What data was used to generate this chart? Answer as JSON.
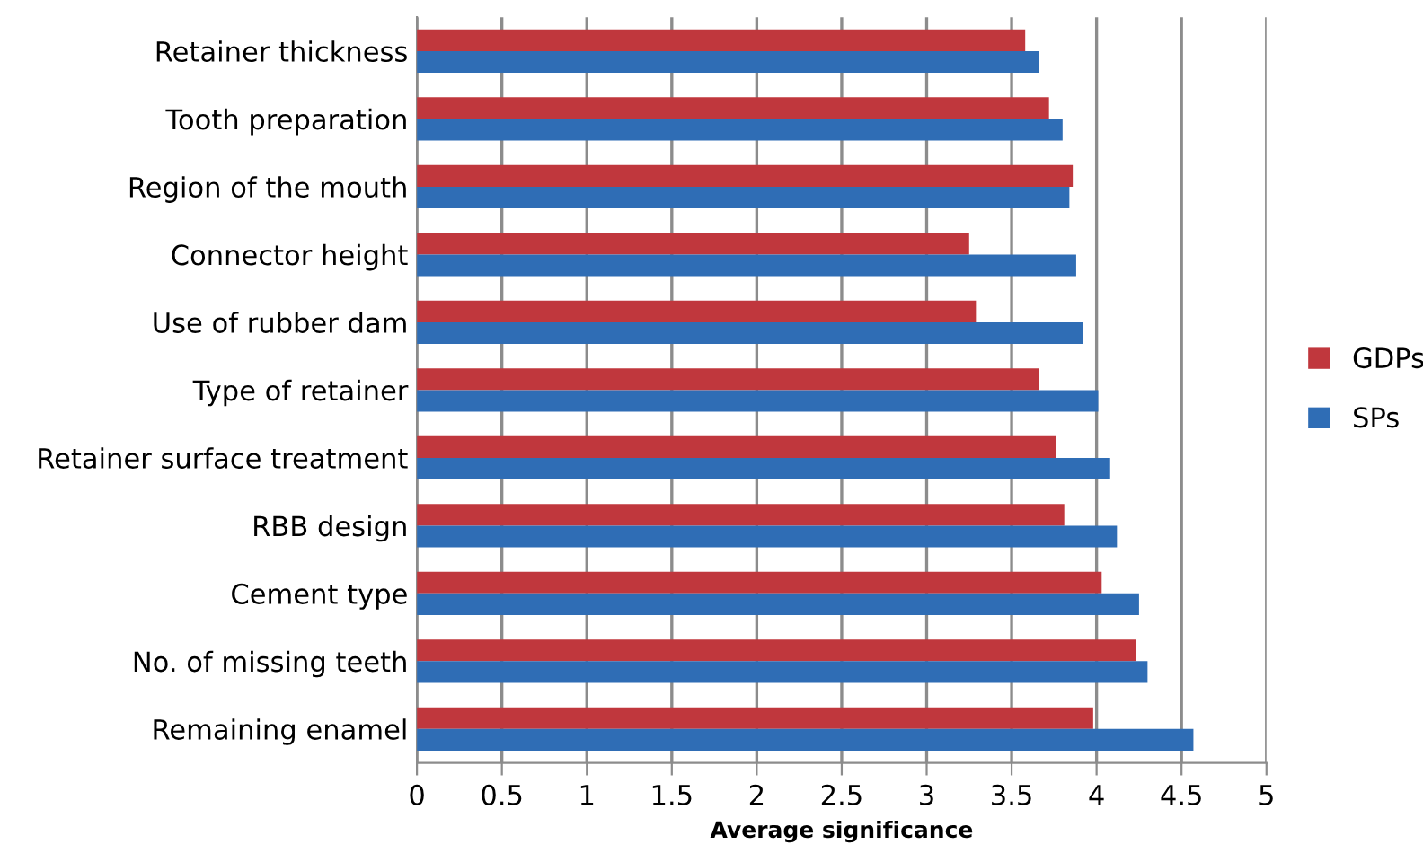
{
  "chart_data": {
    "type": "bar",
    "orientation": "horizontal",
    "xlabel": "Average significance",
    "categories": [
      "Retainer thickness",
      "Tooth preparation",
      "Region of the mouth",
      "Connector height",
      "Use of rubber dam",
      "Type of retainer",
      "Retainer surface treatment",
      "RBB design",
      "Cement type",
      "No. of missing teeth",
      "Remaining enamel"
    ],
    "series": [
      {
        "name": "GDPs",
        "color": "#c0373d",
        "values": [
          3.58,
          3.72,
          3.86,
          3.25,
          3.29,
          3.66,
          3.76,
          3.81,
          4.03,
          4.23,
          3.98
        ]
      },
      {
        "name": "SPs",
        "color": "#2f6db5",
        "values": [
          3.66,
          3.8,
          3.84,
          3.88,
          3.92,
          4.01,
          4.08,
          4.12,
          4.25,
          4.3,
          4.57
        ]
      }
    ],
    "xlim": [
      0,
      5
    ],
    "xticks": [
      0,
      0.5,
      1,
      1.5,
      2,
      2.5,
      3,
      3.5,
      4,
      4.5,
      5
    ],
    "grid": "x",
    "legend": "right"
  }
}
